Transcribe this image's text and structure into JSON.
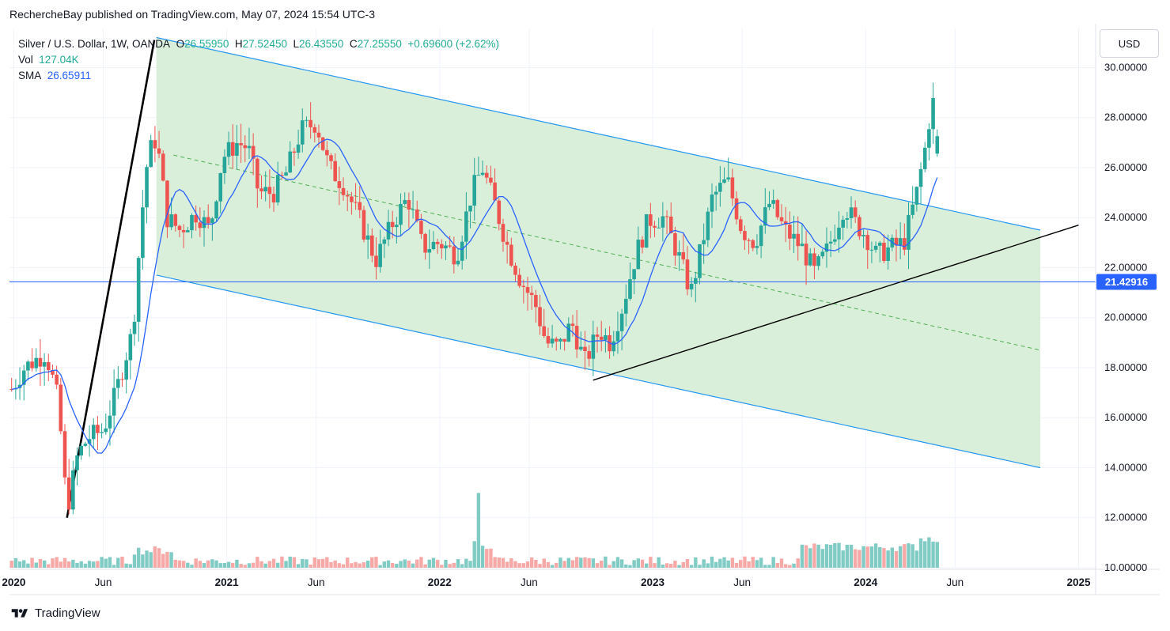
{
  "header": {
    "published_by": "RechercheBay published on TradingView.com, May 07, 2024 15:54 UTC-3"
  },
  "legend": {
    "symbol": "Silver / U.S. Dollar, 1W, OANDA",
    "o_label": "O",
    "o_value": "26.55950",
    "h_label": "H",
    "h_value": "27.52450",
    "l_label": "L",
    "l_value": "26.43550",
    "c_label": "C",
    "c_value": "27.25550",
    "change": "+0.69600 (+2.62%)",
    "vol_label": "Vol",
    "vol_value": "127.04K",
    "sma_label": "SMA",
    "sma_value": "26.65911"
  },
  "currency_button": "USD",
  "brand": "TradingView",
  "price_tag": "21.42916",
  "colors": {
    "up": "#26a69a",
    "down": "#ef5350",
    "up_volume": "#80cbc4",
    "down_volume": "#f7a9a7",
    "sma": "#2962ff",
    "channel_fill": "#d8eed8",
    "channel_line": "#2196f3",
    "midline": "#4caf50",
    "hline": "#2962ff",
    "trend": "#000000"
  },
  "chart_data": {
    "type": "candlestick",
    "title": "Silver / U.S. Dollar, 1W, OANDA",
    "y_ticks": [
      "30.00000",
      "28.00000",
      "26.00000",
      "24.00000",
      "22.00000",
      "20.00000",
      "18.00000",
      "16.00000",
      "14.00000",
      "12.00000",
      "10.00000"
    ],
    "ylim": [
      10,
      31.5
    ],
    "x_ticks": [
      {
        "label": "2020",
        "bold": true,
        "year": 2020.0
      },
      {
        "label": "Jun",
        "bold": false,
        "year": 2020.42
      },
      {
        "label": "2021",
        "bold": true,
        "year": 2021.0
      },
      {
        "label": "Jun",
        "bold": false,
        "year": 2021.42
      },
      {
        "label": "2022",
        "bold": true,
        "year": 2022.0
      },
      {
        "label": "Jun",
        "bold": false,
        "year": 2022.42
      },
      {
        "label": "2023",
        "bold": true,
        "year": 2023.0
      },
      {
        "label": "Jun",
        "bold": false,
        "year": 2023.42
      },
      {
        "label": "2024",
        "bold": true,
        "year": 2024.0
      },
      {
        "label": "Jun",
        "bold": false,
        "year": 2024.42
      },
      {
        "label": "2025",
        "bold": true,
        "year": 2025.0
      }
    ],
    "xlim": [
      2019.98,
      2025.08
    ],
    "anchors": [
      [
        2019.98,
        17.0
      ],
      [
        2020.05,
        18.0
      ],
      [
        2020.15,
        18.6
      ],
      [
        2020.2,
        17.0
      ],
      [
        2020.22,
        15.5
      ],
      [
        2020.25,
        12.3
      ],
      [
        2020.3,
        14.5
      ],
      [
        2020.35,
        15.2
      ],
      [
        2020.42,
        15.5
      ],
      [
        2020.48,
        17.0
      ],
      [
        2020.52,
        18.3
      ],
      [
        2020.56,
        19.5
      ],
      [
        2020.6,
        24.0
      ],
      [
        2020.63,
        26.5
      ],
      [
        2020.67,
        27.2
      ],
      [
        2020.72,
        24.0
      ],
      [
        2020.78,
        23.5
      ],
      [
        2020.86,
        24.2
      ],
      [
        2020.92,
        23.5
      ],
      [
        2020.98,
        26.4
      ],
      [
        2021.05,
        27.0
      ],
      [
        2021.1,
        26.8
      ],
      [
        2021.15,
        25.0
      ],
      [
        2021.22,
        25.0
      ],
      [
        2021.28,
        25.8
      ],
      [
        2021.35,
        27.5
      ],
      [
        2021.42,
        27.8
      ],
      [
        2021.48,
        26.0
      ],
      [
        2021.55,
        25.3
      ],
      [
        2021.62,
        24.0
      ],
      [
        2021.7,
        22.3
      ],
      [
        2021.78,
        23.8
      ],
      [
        2021.85,
        24.8
      ],
      [
        2021.92,
        22.8
      ],
      [
        2022.0,
        23.0
      ],
      [
        2022.08,
        22.5
      ],
      [
        2022.15,
        25.0
      ],
      [
        2022.2,
        26.0
      ],
      [
        2022.26,
        24.5
      ],
      [
        2022.32,
        22.8
      ],
      [
        2022.38,
        21.5
      ],
      [
        2022.45,
        20.5
      ],
      [
        2022.5,
        19.0
      ],
      [
        2022.56,
        18.8
      ],
      [
        2022.62,
        19.8
      ],
      [
        2022.68,
        18.2
      ],
      [
        2022.75,
        19.5
      ],
      [
        2022.8,
        19.0
      ],
      [
        2022.86,
        20.5
      ],
      [
        2022.92,
        22.5
      ],
      [
        2022.98,
        23.9
      ],
      [
        2023.05,
        24.0
      ],
      [
        2023.12,
        22.5
      ],
      [
        2023.18,
        21.0
      ],
      [
        2023.22,
        22.5
      ],
      [
        2023.28,
        24.8
      ],
      [
        2023.35,
        25.5
      ],
      [
        2023.42,
        23.5
      ],
      [
        2023.48,
        23.0
      ],
      [
        2023.55,
        24.6
      ],
      [
        2023.62,
        23.5
      ],
      [
        2023.7,
        22.8
      ],
      [
        2023.76,
        21.8
      ],
      [
        2023.82,
        22.7
      ],
      [
        2023.9,
        24.5
      ],
      [
        2023.95,
        23.8
      ],
      [
        2024.0,
        23.3
      ],
      [
        2024.05,
        22.5
      ],
      [
        2024.12,
        22.8
      ],
      [
        2024.18,
        23.0
      ],
      [
        2024.24,
        25.0
      ],
      [
        2024.28,
        26.8
      ],
      [
        2024.3,
        28.0
      ],
      [
        2024.32,
        28.7
      ],
      [
        2024.34,
        26.8
      ],
      [
        2024.355,
        27.26
      ]
    ],
    "last_candle": {
      "open": 26.5595,
      "high": 27.5245,
      "low": 26.4355,
      "close": 27.2555,
      "volume": "127.04K"
    },
    "sma_last": 26.65911,
    "horizontal_line": 21.42916,
    "channel": {
      "upper": [
        [
          2020.67,
          31.2
        ],
        [
          2024.82,
          23.5
        ]
      ],
      "lower": [
        [
          2020.67,
          21.7
        ],
        [
          2024.82,
          14.0
        ]
      ],
      "midline": [
        [
          2020.75,
          26.5
        ],
        [
          2024.82,
          18.7
        ]
      ]
    },
    "trendlines": [
      {
        "from": [
          2020.25,
          12.0
        ],
        "to": [
          2020.66,
          31.1
        ]
      },
      {
        "from": [
          2022.72,
          17.5
        ],
        "to": [
          2025.0,
          23.7
        ]
      }
    ]
  }
}
